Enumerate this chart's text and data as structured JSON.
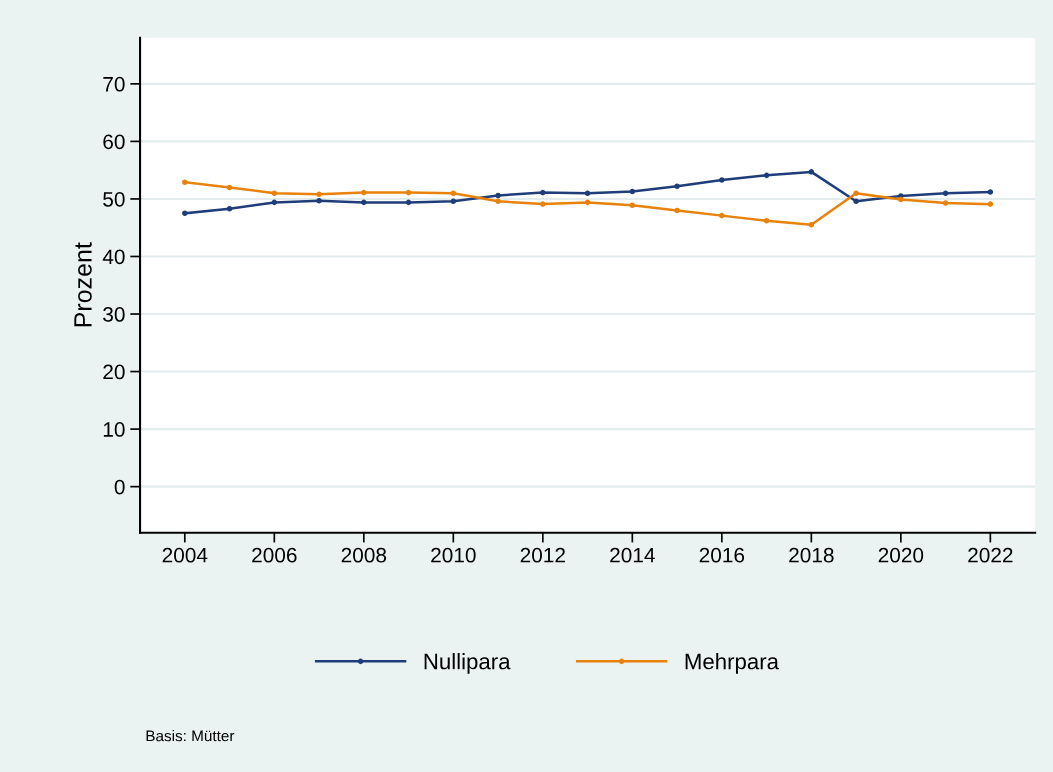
{
  "chart_data": {
    "type": "line",
    "ylabel": "Prozent",
    "x": [
      2004,
      2005,
      2006,
      2007,
      2008,
      2009,
      2010,
      2011,
      2012,
      2013,
      2014,
      2015,
      2016,
      2017,
      2018,
      2019,
      2020,
      2021,
      2022
    ],
    "series": [
      {
        "name": "Nullipara",
        "color": "#1f3d7a",
        "values": [
          47.5,
          48.3,
          49.4,
          49.7,
          49.4,
          49.4,
          49.6,
          50.6,
          51.1,
          51.0,
          51.3,
          52.2,
          53.3,
          54.1,
          54.7,
          49.6,
          50.5,
          51.0,
          51.2
        ]
      },
      {
        "name": "Mehrpara",
        "color": "#e8820c",
        "values": [
          52.9,
          52.0,
          51.0,
          50.8,
          51.1,
          51.1,
          51.0,
          49.6,
          49.1,
          49.4,
          48.9,
          48.0,
          47.1,
          46.2,
          45.5,
          51.0,
          49.9,
          49.3,
          49.1
        ]
      }
    ],
    "xlim": [
      2003,
      2023
    ],
    "xticks": [
      2004,
      2006,
      2008,
      2010,
      2012,
      2014,
      2016,
      2018,
      2020,
      2022
    ],
    "ylim": [
      -8,
      78
    ],
    "yticks": [
      0,
      10,
      20,
      30,
      40,
      50,
      60,
      70
    ],
    "grid": "y",
    "legend": "bottom",
    "marker": "circle",
    "line_style": "solid",
    "annotations": [
      "Basis: Mütter"
    ]
  }
}
